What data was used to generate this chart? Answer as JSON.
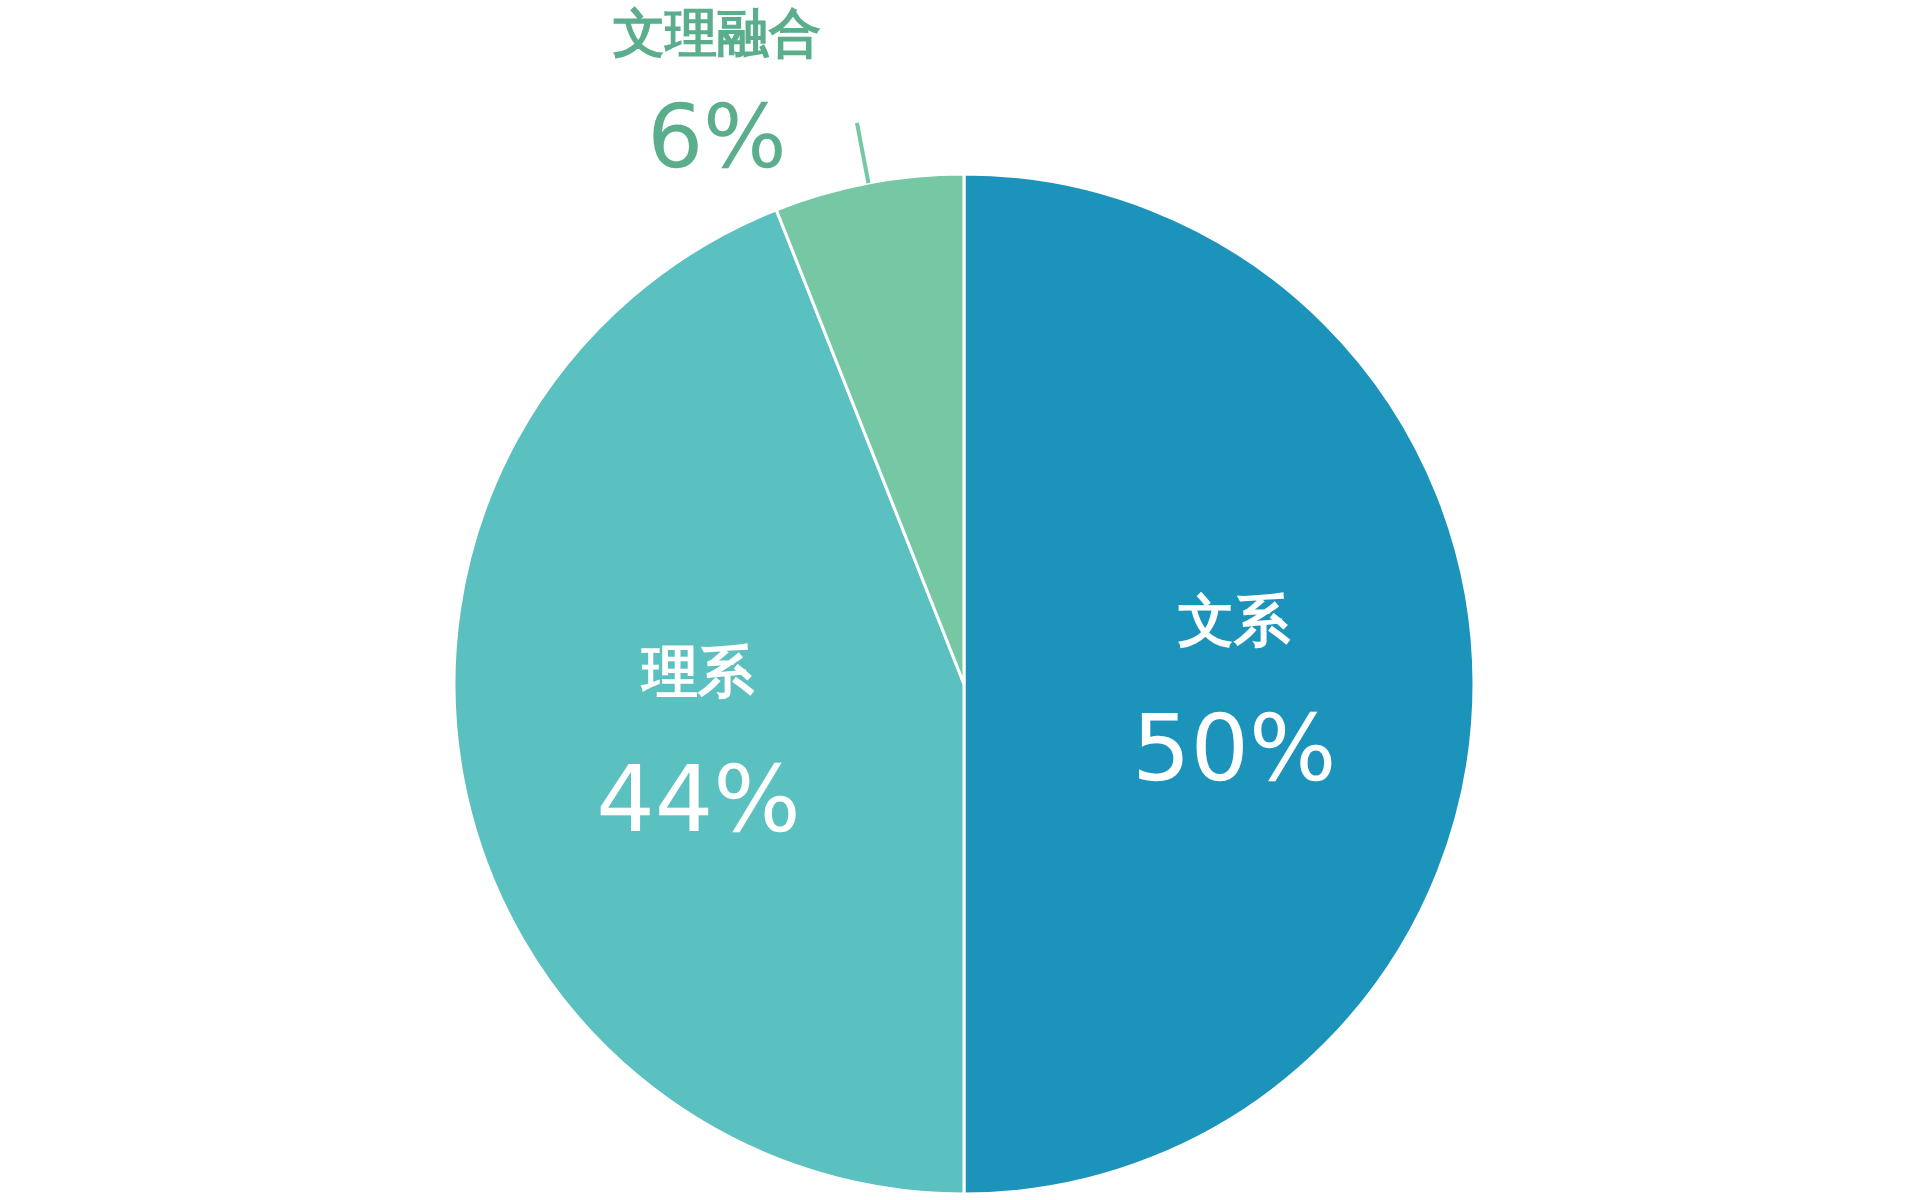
{
  "chart_data": {
    "type": "pie",
    "categories": [
      "文系",
      "理系",
      "文理融合"
    ],
    "values": [
      50,
      44,
      6
    ],
    "colors": [
      "#1b93bb",
      "#5bc0c0",
      "#76c8a5"
    ],
    "value_labels": [
      "50%",
      "44%",
      "6%"
    ]
  }
}
